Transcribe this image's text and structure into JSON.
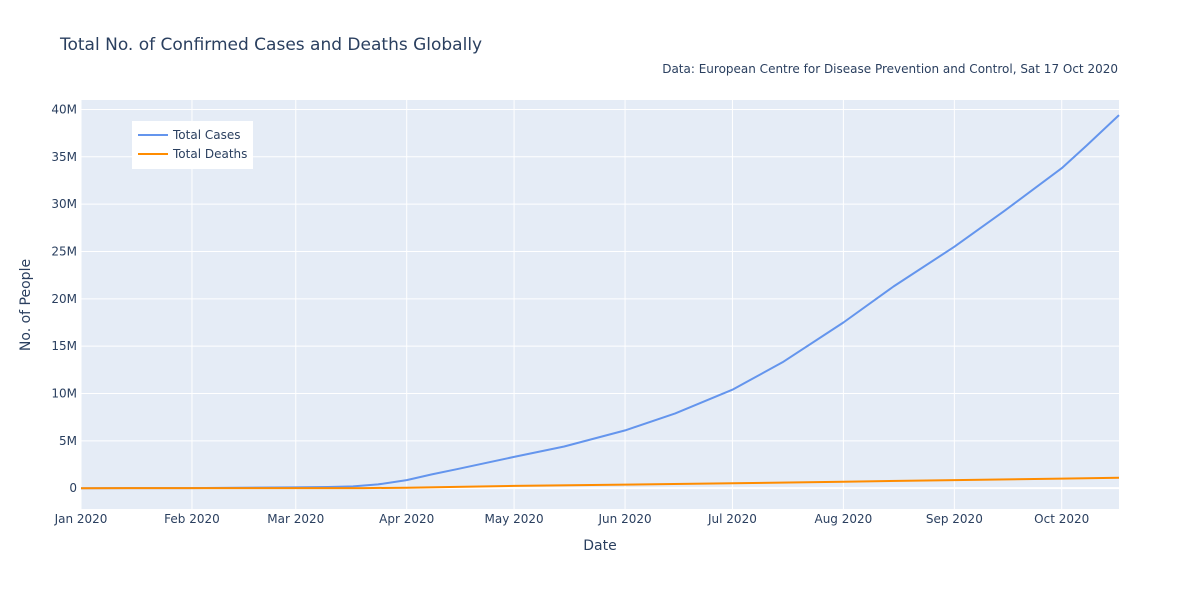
{
  "chart_data": {
    "type": "line",
    "title": "Total No. of Confirmed Cases and Deaths Globally",
    "subtitle": "Data: European Centre for Disease Prevention and Control, Sat 17 Oct 2020",
    "xlabel": "Date",
    "ylabel": "No. of People",
    "xlim": [
      "2020-01-01",
      "2020-10-17"
    ],
    "ylim": [
      -2200000,
      41000000
    ],
    "x_ticks": [
      {
        "date": "2020-01-01",
        "label": "Jan 2020"
      },
      {
        "date": "2020-02-01",
        "label": "Feb 2020"
      },
      {
        "date": "2020-03-01",
        "label": "Mar 2020"
      },
      {
        "date": "2020-04-01",
        "label": "Apr 2020"
      },
      {
        "date": "2020-05-01",
        "label": "May 2020"
      },
      {
        "date": "2020-06-01",
        "label": "Jun 2020"
      },
      {
        "date": "2020-07-01",
        "label": "Jul 2020"
      },
      {
        "date": "2020-08-01",
        "label": "Aug 2020"
      },
      {
        "date": "2020-09-01",
        "label": "Sep 2020"
      },
      {
        "date": "2020-10-01",
        "label": "Oct 2020"
      }
    ],
    "y_ticks": [
      {
        "value": 0,
        "label": "0"
      },
      {
        "value": 5000000,
        "label": "5M"
      },
      {
        "value": 10000000,
        "label": "10M"
      },
      {
        "value": 15000000,
        "label": "15M"
      },
      {
        "value": 20000000,
        "label": "20M"
      },
      {
        "value": 25000000,
        "label": "25M"
      },
      {
        "value": 30000000,
        "label": "30M"
      },
      {
        "value": 35000000,
        "label": "35M"
      },
      {
        "value": 40000000,
        "label": "40M"
      }
    ],
    "grid": true,
    "legend_position": "top-left",
    "plot_background": "#e5ecf6",
    "series": [
      {
        "name": "Total Cases",
        "color": "#6495ed",
        "points": [
          [
            "2020-01-01",
            0
          ],
          [
            "2020-01-31",
            10000
          ],
          [
            "2020-02-29",
            86000
          ],
          [
            "2020-03-10",
            120000
          ],
          [
            "2020-03-17",
            190000
          ],
          [
            "2020-03-24",
            400000
          ],
          [
            "2020-04-01",
            850000
          ],
          [
            "2020-04-08",
            1450000
          ],
          [
            "2020-04-15",
            2000000
          ],
          [
            "2020-05-01",
            3300000
          ],
          [
            "2020-05-15",
            4400000
          ],
          [
            "2020-06-01",
            6100000
          ],
          [
            "2020-06-15",
            7900000
          ],
          [
            "2020-07-01",
            10400000
          ],
          [
            "2020-07-15",
            13300000
          ],
          [
            "2020-08-01",
            17500000
          ],
          [
            "2020-08-15",
            21300000
          ],
          [
            "2020-09-01",
            25500000
          ],
          [
            "2020-09-15",
            29300000
          ],
          [
            "2020-10-01",
            33800000
          ],
          [
            "2020-10-08",
            36200000
          ],
          [
            "2020-10-17",
            39400000
          ]
        ]
      },
      {
        "name": "Total Deaths",
        "color": "#ff8c00",
        "points": [
          [
            "2020-01-01",
            0
          ],
          [
            "2020-03-01",
            3000
          ],
          [
            "2020-03-20",
            11000
          ],
          [
            "2020-04-01",
            47000
          ],
          [
            "2020-04-15",
            130000
          ],
          [
            "2020-05-01",
            235000
          ],
          [
            "2020-06-01",
            375000
          ],
          [
            "2020-07-01",
            515000
          ],
          [
            "2020-08-01",
            680000
          ],
          [
            "2020-09-01",
            850000
          ],
          [
            "2020-10-01",
            1010000
          ],
          [
            "2020-10-17",
            1100000
          ]
        ]
      }
    ]
  }
}
